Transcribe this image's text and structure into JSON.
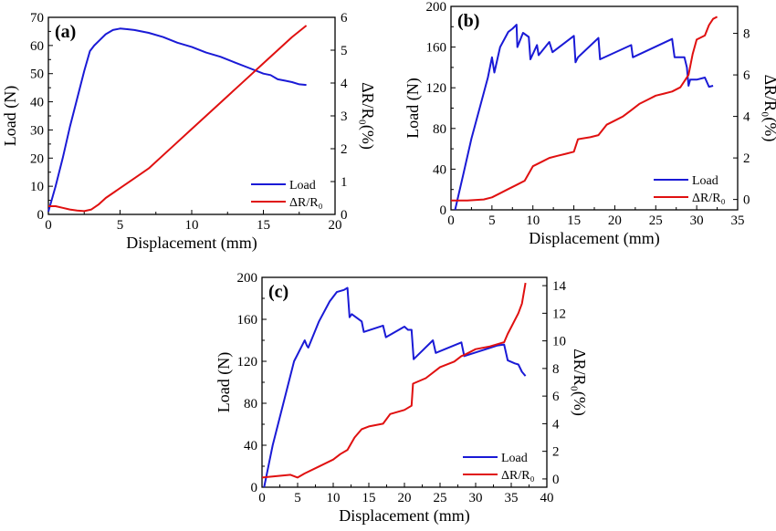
{
  "chart_data": [
    {
      "type": "line",
      "panel_label": "(a)",
      "xlabel": "Displacement (mm)",
      "ylabel": "Load (N)",
      "y2label": "ΔR/R₀(%)",
      "xlim": [
        0,
        20
      ],
      "ylim": [
        0,
        70
      ],
      "y2lim": [
        0,
        6
      ],
      "xticks": [
        0,
        5,
        10,
        15,
        20
      ],
      "yticks": [
        0,
        10,
        20,
        30,
        40,
        50,
        60,
        70
      ],
      "y2ticks": [
        0,
        1,
        2,
        3,
        4,
        5,
        6
      ],
      "legend": [
        "Load",
        "ΔR/R₀"
      ],
      "legend_position": "bottom-right",
      "colors": {
        "load": "#1a1ad6",
        "resistance": "#e01010"
      },
      "series": [
        {
          "name": "Load",
          "axis": "left",
          "x": [
            0,
            0.5,
            1,
            1.5,
            2,
            2.5,
            2.9,
            3.2,
            3.6,
            4,
            4.5,
            5,
            5.5,
            6,
            7,
            8,
            9,
            10,
            11,
            12,
            13,
            14,
            15,
            15.5,
            16,
            16.5,
            17,
            17.5,
            18
          ],
          "y": [
            1,
            10,
            20,
            31,
            41,
            51,
            58,
            60,
            62,
            64,
            65.5,
            66,
            65.8,
            65.5,
            64.5,
            63,
            61,
            59.5,
            57.5,
            56,
            54,
            52,
            50,
            49.5,
            48,
            47.5,
            47,
            46.2,
            46
          ]
        },
        {
          "name": "ΔR/R₀",
          "axis": "right",
          "x": [
            0,
            0.5,
            1,
            1.5,
            2,
            2.5,
            3,
            3.5,
            4,
            5,
            6,
            7,
            8,
            9,
            10,
            11,
            12,
            13,
            14,
            15,
            16,
            17,
            18
          ],
          "y": [
            0.25,
            0.25,
            0.2,
            0.15,
            0.12,
            0.1,
            0.15,
            0.3,
            0.5,
            0.8,
            1.1,
            1.4,
            1.8,
            2.2,
            2.6,
            3.0,
            3.4,
            3.8,
            4.2,
            4.6,
            5.0,
            5.4,
            5.75
          ]
        }
      ]
    },
    {
      "type": "line",
      "panel_label": "(b)",
      "xlabel": "Displacement (mm)",
      "ylabel": "Load (N)",
      "y2label": "ΔR/R₀(%)",
      "xlim": [
        0,
        35
      ],
      "ylim": [
        0,
        200
      ],
      "y2lim": [
        -0.5,
        9.3
      ],
      "xticks": [
        0,
        5,
        10,
        15,
        20,
        25,
        30,
        35
      ],
      "yticks": [
        0,
        40,
        80,
        120,
        160,
        200
      ],
      "y2ticks": [
        0,
        2,
        4,
        6,
        8
      ],
      "legend": [
        "Load",
        "ΔR/R₀"
      ],
      "legend_position": "bottom-right",
      "colors": {
        "load": "#1a1ad6",
        "resistance": "#e01010"
      },
      "series": [
        {
          "name": "Load",
          "axis": "left",
          "x": [
            0.5,
            1.5,
            2.5,
            3.5,
            4.5,
            5,
            5.3,
            6,
            7,
            7.5,
            8,
            8.1,
            8.8,
            9.5,
            9.7,
            10.5,
            10.7,
            12,
            12.4,
            15,
            15.2,
            15.5,
            18,
            18.2,
            22,
            22.2,
            27,
            27.3,
            28.5,
            28.8,
            29,
            29.2,
            30,
            31,
            31.5,
            32
          ],
          "y": [
            0,
            35,
            70,
            100,
            130,
            150,
            135,
            160,
            175,
            178,
            182,
            160,
            174,
            170,
            148,
            162,
            152,
            165,
            155,
            171,
            145,
            150,
            169,
            148,
            162,
            150,
            168,
            150,
            150,
            140,
            122,
            128,
            128,
            130,
            121,
            122
          ]
        },
        {
          "name": "ΔR/R₀",
          "axis": "right",
          "x": [
            0,
            2,
            4,
            5,
            6,
            7,
            8,
            9,
            10,
            11,
            12,
            13,
            14,
            15,
            15.5,
            17,
            18,
            19,
            20,
            21,
            22,
            23,
            24,
            25,
            26,
            27,
            28,
            28.5,
            29,
            29.5,
            30,
            31,
            31.5,
            32,
            32.5
          ],
          "y": [
            -0.05,
            -0.05,
            0,
            0.1,
            0.3,
            0.5,
            0.7,
            0.9,
            1.6,
            1.8,
            2.0,
            2.1,
            2.2,
            2.3,
            2.9,
            3.0,
            3.1,
            3.6,
            3.8,
            4.0,
            4.3,
            4.6,
            4.8,
            5.0,
            5.1,
            5.2,
            5.4,
            5.7,
            6.0,
            7.0,
            7.7,
            7.9,
            8.4,
            8.7,
            8.8
          ]
        }
      ]
    },
    {
      "type": "line",
      "panel_label": "(c)",
      "xlabel": "Displacement (mm)",
      "ylabel": "Load (N)",
      "y2label": "ΔR/R₀(%)",
      "xlim": [
        0,
        40
      ],
      "ylim": [
        0,
        200
      ],
      "y2lim": [
        -0.6,
        14.6
      ],
      "xticks": [
        0,
        5,
        10,
        15,
        20,
        25,
        30,
        35,
        40
      ],
      "yticks": [
        0,
        40,
        80,
        120,
        160,
        200
      ],
      "y2ticks": [
        0,
        2,
        4,
        6,
        8,
        10,
        12,
        14
      ],
      "legend": [
        "Load",
        "ΔR/R₀"
      ],
      "legend_position": "bottom-right",
      "colors": {
        "load": "#1a1ad6",
        "resistance": "#e01010"
      },
      "series": [
        {
          "name": "Load",
          "axis": "left",
          "x": [
            0.3,
            1.5,
            3,
            4.5,
            6,
            6.3,
            6.5,
            8,
            9.5,
            10.5,
            11.5,
            12,
            12.3,
            12.6,
            14,
            14.3,
            17,
            17.4,
            20,
            20.5,
            21,
            21.3,
            24,
            24.4,
            28,
            28.4,
            33,
            34,
            34.5,
            35.5,
            36,
            36.5,
            37
          ],
          "y": [
            0,
            40,
            80,
            120,
            140,
            135,
            133,
            158,
            177,
            186,
            188,
            190,
            162,
            165,
            158,
            148,
            154,
            143,
            153,
            150,
            150,
            122,
            140,
            128,
            138,
            125,
            135,
            136,
            121,
            118,
            117,
            110,
            106
          ]
        },
        {
          "name": "ΔR/R₀",
          "axis": "right",
          "x": [
            0,
            2,
            4,
            5,
            6,
            8,
            10,
            11,
            12,
            13,
            14,
            15,
            17,
            18,
            20,
            21,
            21.2,
            23,
            25,
            27,
            28,
            28.5,
            30,
            32,
            34,
            34.5,
            35,
            36,
            36.5,
            37
          ],
          "y": [
            0.1,
            0.2,
            0.3,
            0.1,
            0.4,
            0.9,
            1.4,
            1.8,
            2.1,
            3.0,
            3.6,
            3.8,
            4.0,
            4.7,
            5.0,
            5.3,
            6.9,
            7.3,
            8.1,
            8.5,
            8.9,
            9.0,
            9.4,
            9.6,
            9.9,
            10.5,
            11.0,
            12.0,
            12.7,
            14.2
          ]
        }
      ]
    }
  ]
}
